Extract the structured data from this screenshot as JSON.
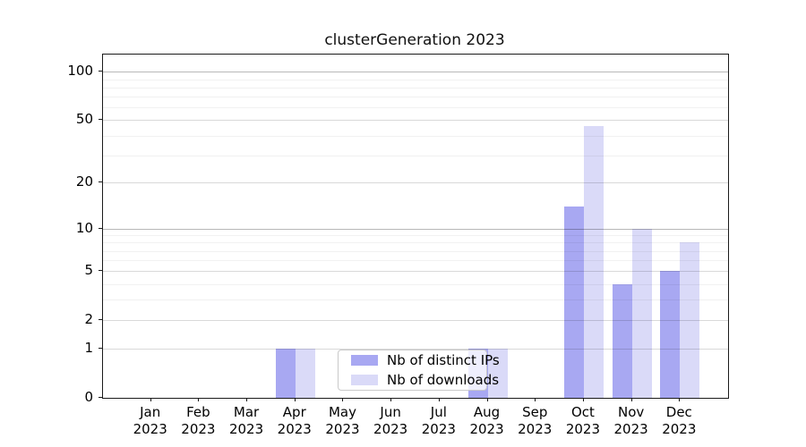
{
  "chart_data": {
    "type": "bar",
    "title": "clusterGeneration 2023",
    "categories": [
      "Jan",
      "Feb",
      "Mar",
      "Apr",
      "May",
      "Jun",
      "Jul",
      "Aug",
      "Sep",
      "Oct",
      "Nov",
      "Dec"
    ],
    "year": "2023",
    "series": [
      {
        "name": "Nb of distinct IPs",
        "color": "#a8a8f2",
        "values": [
          0,
          0,
          0,
          1,
          0,
          0,
          0,
          1,
          0,
          14,
          4,
          5
        ]
      },
      {
        "name": "Nb of downloads",
        "color": "#dadaf8",
        "values": [
          0,
          0,
          0,
          1,
          0,
          0,
          0,
          1,
          0,
          46,
          10,
          8
        ]
      }
    ],
    "y_scale": "log1p",
    "y_ticks": [
      0,
      1,
      2,
      5,
      10,
      20,
      50,
      100
    ],
    "y_minor_ticks": [
      3,
      4,
      6,
      7,
      8,
      9,
      30,
      40,
      60,
      70,
      80,
      90
    ],
    "ylim": [
      0,
      128
    ],
    "grid": true,
    "legend_position": "lower center"
  }
}
